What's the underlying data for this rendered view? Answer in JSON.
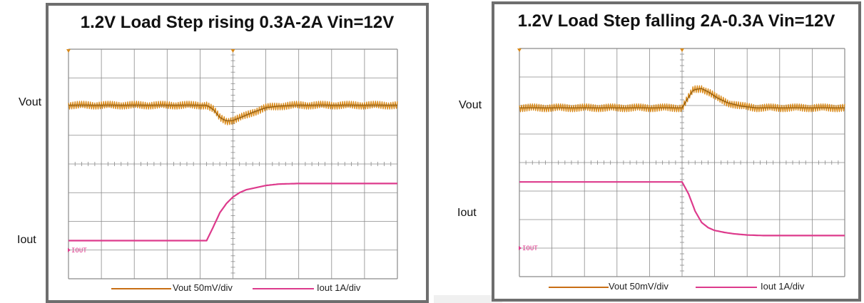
{
  "colors": {
    "vout": "#d98a1a",
    "vout_dark": "#8a5a14",
    "iout": "#dd3a8c",
    "grid": "#8a8a8a",
    "frame": "#6e6e6e"
  },
  "chart_data": [
    {
      "type": "line",
      "title": "1.2V Load Step rising 0.3A-2A Vin=12V",
      "side_labels": {
        "vout": "Vout",
        "iout": "Iout"
      },
      "channel_marker": "IOUT",
      "legend": [
        {
          "name": "Vout 50mV/div",
          "color": "#d98a1a"
        },
        {
          "name": "Iout 1A/div",
          "color": "#dd3a8c"
        }
      ],
      "grid": {
        "divisions_x": 10,
        "divisions_y": 8,
        "shown": true
      },
      "xlim": [
        0,
        10
      ],
      "ylim": [
        0,
        8
      ],
      "series": [
        {
          "name": "Vout 50mV/div",
          "x": [
            0,
            4.2,
            4.4,
            4.6,
            4.8,
            5.0,
            5.2,
            5.4,
            5.6,
            6.0,
            6.4,
            7.0,
            10
          ],
          "y": [
            6.05,
            6.05,
            5.9,
            5.62,
            5.5,
            5.52,
            5.6,
            5.7,
            5.8,
            5.96,
            6.02,
            6.05,
            6.05
          ],
          "ripple": 0.14
        },
        {
          "name": "Iout 1A/div",
          "x": [
            0,
            4.2,
            4.4,
            4.6,
            4.8,
            5.0,
            5.2,
            5.4,
            5.6,
            5.8,
            6.0,
            6.4,
            7.0,
            10
          ],
          "y": [
            1.33,
            1.33,
            1.8,
            2.3,
            2.62,
            2.85,
            3.0,
            3.1,
            3.15,
            3.2,
            3.25,
            3.3,
            3.32,
            3.32
          ],
          "ripple": 0
        }
      ]
    },
    {
      "type": "line",
      "title": "1.2V Load Step falling 2A-0.3A Vin=12V",
      "side_labels": {
        "vout": "Vout",
        "iout": "Iout"
      },
      "channel_marker": "IOUT",
      "legend": [
        {
          "name": "Vout 50mV/div",
          "color": "#d98a1a"
        },
        {
          "name": "Iout 1A/div",
          "color": "#dd3a8c"
        }
      ],
      "grid": {
        "divisions_x": 10,
        "divisions_y": 8,
        "shown": true
      },
      "xlim": [
        0,
        10
      ],
      "ylim": [
        0,
        8
      ],
      "series": [
        {
          "name": "Vout 50mV/div",
          "x": [
            0,
            5.0,
            5.15,
            5.35,
            5.6,
            5.85,
            6.1,
            6.4,
            6.8,
            7.3,
            10
          ],
          "y": [
            5.92,
            5.92,
            6.2,
            6.55,
            6.6,
            6.45,
            6.25,
            6.1,
            5.98,
            5.92,
            5.92
          ],
          "ripple": 0.14
        },
        {
          "name": "Iout 1A/div",
          "x": [
            0,
            5.0,
            5.2,
            5.4,
            5.6,
            5.8,
            6.0,
            6.3,
            6.6,
            7.0,
            7.5,
            10
          ],
          "y": [
            3.32,
            3.32,
            2.9,
            2.3,
            1.9,
            1.72,
            1.62,
            1.55,
            1.5,
            1.46,
            1.44,
            1.44
          ],
          "ripple": 0
        }
      ]
    }
  ]
}
